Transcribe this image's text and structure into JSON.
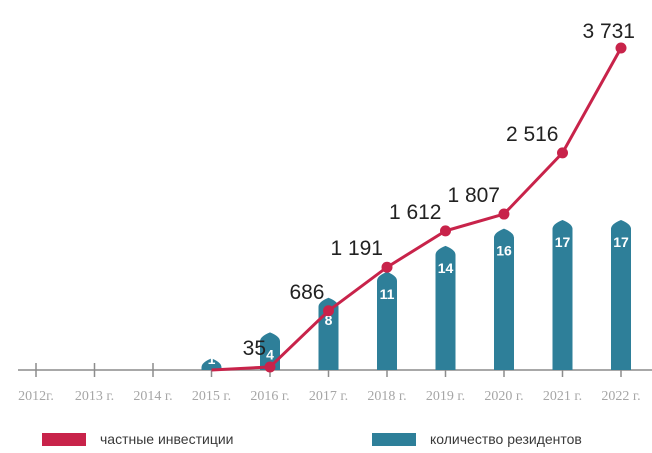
{
  "chart_data": {
    "type": "bar+line",
    "categories": [
      "2012г.",
      "2013 г.",
      "2014 г.",
      "2015 г.",
      "2016 г.",
      "2017 г.",
      "2018 г.",
      "2019 г.",
      "2020 г.",
      "2021 г.",
      "2022 г."
    ],
    "series": [
      {
        "name": "частные инвестиции",
        "type": "line",
        "color": "#c8234a",
        "values": [
          null,
          null,
          null,
          0,
          35,
          686,
          1191,
          1612,
          1807,
          2516,
          3731
        ],
        "labels": [
          "",
          "",
          "",
          "",
          "35",
          "686",
          "1 191",
          "1 612",
          "1 807",
          "2 516",
          "3 731"
        ]
      },
      {
        "name": "количество резидентов",
        "type": "bar",
        "color": "#2e7f99",
        "values": [
          null,
          null,
          null,
          1,
          4,
          8,
          11,
          14,
          16,
          17,
          17
        ],
        "labels": [
          "",
          "",
          "",
          "1",
          "4",
          "8",
          "11",
          "14",
          "16",
          "17",
          "17"
        ]
      }
    ],
    "line_ylim": [
      0,
      4000
    ],
    "bar_ylim": [
      0,
      25
    ],
    "grid": false,
    "legend_position": "bottom"
  }
}
